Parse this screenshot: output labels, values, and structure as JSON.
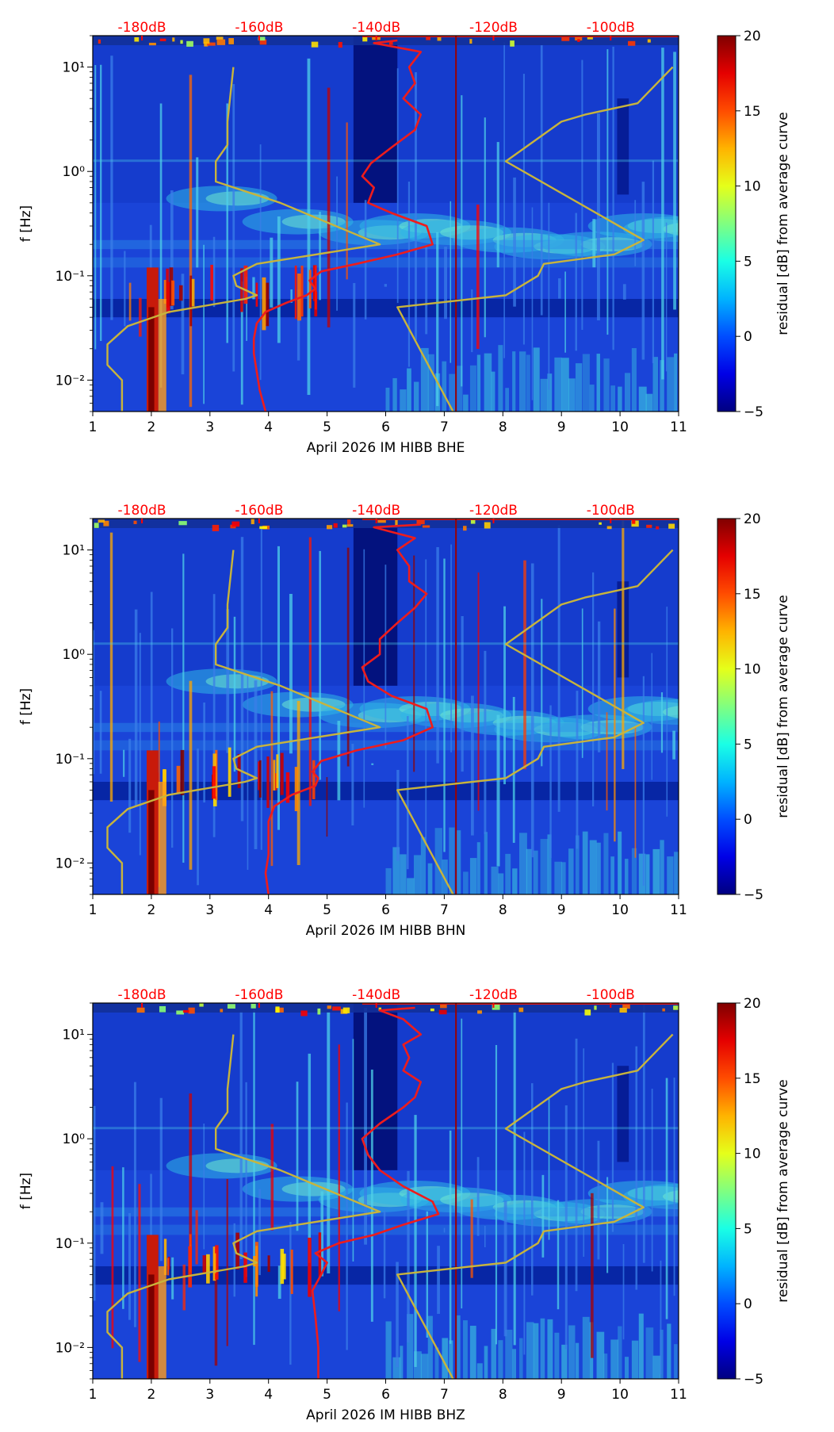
{
  "chart_data": [
    {
      "type": "heatmap",
      "xlabel": "April 2026 IM HIBB  BHE",
      "ylabel": "f [Hz]",
      "xlim": [
        1,
        11
      ],
      "xticks": [
        1,
        2,
        3,
        4,
        5,
        6,
        7,
        8,
        9,
        10,
        11
      ],
      "xtick_labels": [
        "1",
        "2",
        "3",
        "4",
        "5",
        "6",
        "7",
        "8",
        "9",
        "10",
        "11"
      ],
      "ylim": [
        0.005,
        20
      ],
      "yscale": "log",
      "yticks": [
        0.01,
        0.1,
        1,
        10
      ],
      "ytick_labels": [
        "10⁻²",
        "10⁻¹",
        "10⁰",
        "10¹"
      ],
      "top_labels": {
        "values": [
          1.84,
          3.84,
          5.84,
          7.84,
          9.84
        ],
        "labels": [
          "-180dB",
          "-160dB",
          "-140dB",
          "-120dB",
          "-100dB"
        ],
        "color": "#ff0000"
      },
      "colorbar": {
        "label": "residual [dB] from average curve",
        "min": -5,
        "max": 20,
        "ticks": [
          -5,
          0,
          5,
          10,
          15,
          20
        ],
        "tick_labels": [
          "−5",
          "0",
          "5",
          "10",
          "15",
          "20"
        ]
      },
      "vline_day": 7.2,
      "series": [
        {
          "name": "average PSD curve (red)",
          "color": "#ee1c1c",
          "points": [
            [
              3.95,
              0.005
            ],
            [
              3.85,
              0.008
            ],
            [
              3.8,
              0.012
            ],
            [
              3.75,
              0.018
            ],
            [
              3.75,
              0.025
            ],
            [
              3.8,
              0.035
            ],
            [
              3.95,
              0.045
            ],
            [
              4.3,
              0.055
            ],
            [
              4.65,
              0.065
            ],
            [
              4.8,
              0.075
            ],
            [
              4.7,
              0.09
            ],
            [
              4.9,
              0.11
            ],
            [
              5.5,
              0.13
            ],
            [
              6.2,
              0.16
            ],
            [
              6.8,
              0.2
            ],
            [
              6.7,
              0.3
            ],
            [
              6.1,
              0.4
            ],
            [
              5.7,
              0.5
            ],
            [
              5.8,
              0.7
            ],
            [
              5.6,
              0.9
            ],
            [
              5.75,
              1.2
            ],
            [
              6.1,
              1.7
            ],
            [
              6.5,
              2.5
            ],
            [
              6.6,
              3.5
            ],
            [
              6.3,
              5.0
            ],
            [
              6.5,
              7.0
            ],
            [
              6.4,
              10.0
            ],
            [
              6.6,
              14.0
            ],
            [
              5.8,
              17.0
            ],
            [
              6.2,
              18.0
            ]
          ]
        },
        {
          "name": "NLNM (yellow)",
          "color": "#c8b43c",
          "points": [
            [
              1.5,
              0.005
            ],
            [
              1.5,
              0.01
            ],
            [
              1.25,
              0.014
            ],
            [
              1.25,
              0.022
            ],
            [
              1.6,
              0.033
            ],
            [
              2.3,
              0.045
            ],
            [
              3.6,
              0.06
            ],
            [
              3.8,
              0.065
            ],
            [
              3.45,
              0.08
            ],
            [
              3.4,
              0.1
            ],
            [
              3.8,
              0.13
            ],
            [
              5.9,
              0.2
            ],
            [
              4.2,
              0.5
            ],
            [
              3.1,
              0.8
            ],
            [
              3.1,
              1.25
            ],
            [
              3.3,
              1.8
            ],
            [
              3.3,
              3.0
            ],
            [
              3.4,
              10.0
            ]
          ]
        },
        {
          "name": "NHNM (yellow)",
          "color": "#c8b43c",
          "points": [
            [
              7.15,
              0.005
            ],
            [
              6.2,
              0.05
            ],
            [
              8.05,
              0.065
            ],
            [
              8.6,
              0.1
            ],
            [
              8.7,
              0.13
            ],
            [
              9.9,
              0.16
            ],
            [
              10.4,
              0.22
            ],
            [
              8.05,
              1.25
            ],
            [
              9.0,
              3.0
            ],
            [
              9.4,
              3.5
            ],
            [
              10.3,
              4.5
            ],
            [
              10.9,
              10.0
            ]
          ]
        }
      ]
    },
    {
      "type": "heatmap",
      "xlabel": "April 2026 IM HIBB  BHN",
      "ylabel": "f [Hz]",
      "xlim": [
        1,
        11
      ],
      "xticks": [
        1,
        2,
        3,
        4,
        5,
        6,
        7,
        8,
        9,
        10,
        11
      ],
      "xtick_labels": [
        "1",
        "2",
        "3",
        "4",
        "5",
        "6",
        "7",
        "8",
        "9",
        "10",
        "11"
      ],
      "ylim": [
        0.005,
        20
      ],
      "yscale": "log",
      "yticks": [
        0.01,
        0.1,
        1,
        10
      ],
      "ytick_labels": [
        "10⁻²",
        "10⁻¹",
        "10⁰",
        "10¹"
      ],
      "top_labels": {
        "values": [
          1.84,
          3.84,
          5.84,
          7.84,
          9.84
        ],
        "labels": [
          "-180dB",
          "-160dB",
          "-140dB",
          "-120dB",
          "-100dB"
        ],
        "color": "#ff0000"
      },
      "colorbar": {
        "label": "residual [dB] from average curve",
        "min": -5,
        "max": 20,
        "ticks": [
          -5,
          0,
          5,
          10,
          15,
          20
        ],
        "tick_labels": [
          "−5",
          "0",
          "5",
          "10",
          "15",
          "20"
        ]
      },
      "vline_day": 7.2,
      "series": [
        {
          "name": "average PSD curve (red)",
          "color": "#ee1c1c",
          "points": [
            [
              4.0,
              0.005
            ],
            [
              3.95,
              0.008
            ],
            [
              4.0,
              0.012
            ],
            [
              4.0,
              0.018
            ],
            [
              4.0,
              0.025
            ],
            [
              4.1,
              0.035
            ],
            [
              4.4,
              0.045
            ],
            [
              4.8,
              0.055
            ],
            [
              4.85,
              0.065
            ],
            [
              4.75,
              0.075
            ],
            [
              4.9,
              0.095
            ],
            [
              5.5,
              0.12
            ],
            [
              6.3,
              0.15
            ],
            [
              6.8,
              0.2
            ],
            [
              6.7,
              0.3
            ],
            [
              6.1,
              0.4
            ],
            [
              5.7,
              0.55
            ],
            [
              5.6,
              0.75
            ],
            [
              5.9,
              1.0
            ],
            [
              5.9,
              1.4
            ],
            [
              6.2,
              2.0
            ],
            [
              6.5,
              2.8
            ],
            [
              6.7,
              3.8
            ],
            [
              6.4,
              5.0
            ],
            [
              6.4,
              7.0
            ],
            [
              6.2,
              10.0
            ],
            [
              6.5,
              13.0
            ],
            [
              5.8,
              16.5
            ],
            [
              6.6,
              17.5
            ]
          ]
        },
        {
          "name": "NLNM (yellow)",
          "color": "#c8b43c",
          "points": [
            [
              1.5,
              0.005
            ],
            [
              1.5,
              0.01
            ],
            [
              1.25,
              0.014
            ],
            [
              1.25,
              0.022
            ],
            [
              1.6,
              0.033
            ],
            [
              2.3,
              0.045
            ],
            [
              3.6,
              0.06
            ],
            [
              3.8,
              0.065
            ],
            [
              3.45,
              0.08
            ],
            [
              3.4,
              0.1
            ],
            [
              3.8,
              0.13
            ],
            [
              5.9,
              0.2
            ],
            [
              4.2,
              0.5
            ],
            [
              3.1,
              0.8
            ],
            [
              3.1,
              1.25
            ],
            [
              3.3,
              1.8
            ],
            [
              3.3,
              3.0
            ],
            [
              3.4,
              10.0
            ]
          ]
        },
        {
          "name": "NHNM (yellow)",
          "color": "#c8b43c",
          "points": [
            [
              7.15,
              0.005
            ],
            [
              6.2,
              0.05
            ],
            [
              8.05,
              0.065
            ],
            [
              8.6,
              0.1
            ],
            [
              8.7,
              0.13
            ],
            [
              9.9,
              0.16
            ],
            [
              10.4,
              0.22
            ],
            [
              8.05,
              1.25
            ],
            [
              9.0,
              3.0
            ],
            [
              9.4,
              3.5
            ],
            [
              10.3,
              4.5
            ],
            [
              10.9,
              10.0
            ]
          ]
        }
      ]
    },
    {
      "type": "heatmap",
      "xlabel": "April 2026 IM HIBB  BHZ",
      "ylabel": "f [Hz]",
      "xlim": [
        1,
        11
      ],
      "xticks": [
        1,
        2,
        3,
        4,
        5,
        6,
        7,
        8,
        9,
        10,
        11
      ],
      "xtick_labels": [
        "1",
        "2",
        "3",
        "4",
        "5",
        "6",
        "7",
        "8",
        "9",
        "10",
        "11"
      ],
      "ylim": [
        0.005,
        20
      ],
      "yscale": "log",
      "yticks": [
        0.01,
        0.1,
        1,
        10
      ],
      "ytick_labels": [
        "10⁻²",
        "10⁻¹",
        "10⁰",
        "10¹"
      ],
      "top_labels": {
        "values": [
          1.84,
          3.84,
          5.84,
          7.84,
          9.84
        ],
        "labels": [
          "-180dB",
          "-160dB",
          "-140dB",
          "-120dB",
          "-100dB"
        ],
        "color": "#ff0000"
      },
      "colorbar": {
        "label": "residual [dB] from average curve",
        "min": -5,
        "max": 20,
        "ticks": [
          -5,
          0,
          5,
          10,
          15,
          20
        ],
        "tick_labels": [
          "−5",
          "0",
          "5",
          "10",
          "15",
          "20"
        ]
      },
      "vline_day": 7.2,
      "series": [
        {
          "name": "average PSD curve (red)",
          "color": "#ee1c1c",
          "points": [
            [
              4.85,
              0.005
            ],
            [
              4.85,
              0.01
            ],
            [
              4.8,
              0.02
            ],
            [
              4.75,
              0.035
            ],
            [
              4.9,
              0.05
            ],
            [
              5.0,
              0.065
            ],
            [
              4.8,
              0.08
            ],
            [
              5.2,
              0.1
            ],
            [
              5.8,
              0.12
            ],
            [
              6.3,
              0.15
            ],
            [
              6.9,
              0.19
            ],
            [
              6.8,
              0.25
            ],
            [
              6.3,
              0.35
            ],
            [
              5.9,
              0.5
            ],
            [
              5.7,
              0.7
            ],
            [
              5.6,
              1.0
            ],
            [
              5.9,
              1.4
            ],
            [
              6.3,
              2.0
            ],
            [
              6.5,
              2.5
            ],
            [
              6.6,
              3.5
            ],
            [
              6.3,
              4.5
            ],
            [
              6.4,
              6.0
            ],
            [
              6.3,
              8.0
            ],
            [
              6.6,
              10.0
            ],
            [
              6.3,
              14.0
            ],
            [
              5.9,
              17.0
            ],
            [
              6.5,
              18.0
            ]
          ]
        },
        {
          "name": "NLNM (yellow)",
          "color": "#c8b43c",
          "points": [
            [
              1.5,
              0.005
            ],
            [
              1.5,
              0.01
            ],
            [
              1.25,
              0.014
            ],
            [
              1.25,
              0.022
            ],
            [
              1.6,
              0.033
            ],
            [
              2.3,
              0.045
            ],
            [
              3.6,
              0.06
            ],
            [
              3.8,
              0.065
            ],
            [
              3.45,
              0.08
            ],
            [
              3.4,
              0.1
            ],
            [
              3.8,
              0.13
            ],
            [
              5.9,
              0.2
            ],
            [
              4.2,
              0.5
            ],
            [
              3.1,
              0.8
            ],
            [
              3.1,
              1.25
            ],
            [
              3.3,
              1.8
            ],
            [
              3.3,
              3.0
            ],
            [
              3.4,
              10.0
            ]
          ]
        },
        {
          "name": "NHNM (yellow)",
          "color": "#c8b43c",
          "points": [
            [
              7.15,
              0.005
            ],
            [
              6.2,
              0.05
            ],
            [
              8.05,
              0.065
            ],
            [
              8.6,
              0.1
            ],
            [
              8.7,
              0.13
            ],
            [
              9.9,
              0.16
            ],
            [
              10.4,
              0.22
            ],
            [
              8.05,
              1.25
            ],
            [
              9.0,
              3.0
            ],
            [
              9.4,
              3.5
            ],
            [
              10.3,
              4.5
            ],
            [
              10.9,
              10.0
            ]
          ]
        }
      ]
    }
  ]
}
